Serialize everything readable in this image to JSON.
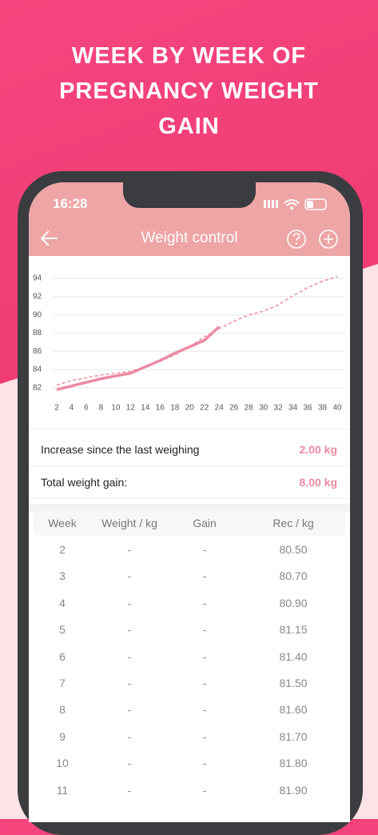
{
  "banner": {
    "title": "WEEK BY WEEK OF PREGNANCY WEIGHT GAIN"
  },
  "status_bar": {
    "time": "16:28"
  },
  "nav": {
    "title": "Weight control"
  },
  "chart_data": {
    "type": "line",
    "x": [
      2,
      4,
      6,
      8,
      10,
      12,
      14,
      16,
      18,
      20,
      22,
      24,
      26,
      28,
      30,
      32,
      34,
      36,
      38,
      40
    ],
    "xlim": [
      2,
      40
    ],
    "xticks": [
      2,
      4,
      6,
      8,
      10,
      12,
      14,
      16,
      18,
      20,
      22,
      24,
      26,
      28,
      30,
      32,
      34,
      36,
      38,
      40
    ],
    "ylim": [
      80.5,
      95.5
    ],
    "yticks": [
      82,
      84,
      86,
      88,
      90,
      92,
      94
    ],
    "grid": true,
    "series": [
      {
        "color": "#ec8aa3",
        "style": "solid",
        "values": [
          81.8,
          82.2,
          82.6,
          83.0,
          83.3,
          83.6,
          84.3,
          85.0,
          85.8,
          86.5,
          87.2,
          88.7,
          null,
          null,
          null,
          null,
          null,
          null,
          null,
          null
        ]
      },
      {
        "color": "#ec8aa3",
        "style": "dashed",
        "values": [
          82.3,
          82.8,
          83.1,
          83.4,
          83.6,
          83.8,
          84.3,
          84.9,
          85.6,
          86.5,
          87.6,
          88.5,
          89.3,
          90.0,
          90.4,
          91.1,
          92.1,
          93.0,
          93.7,
          94.2
        ]
      }
    ]
  },
  "summary": {
    "rows": [
      {
        "label": "Increase since the last weighing",
        "value": "2.00 kg"
      },
      {
        "label": "Total weight gain:",
        "value": "8.00 kg"
      }
    ]
  },
  "table": {
    "header": [
      "Week",
      "Weight / kg",
      "Gain",
      "Rec / kg"
    ],
    "rows": [
      [
        "2",
        "-",
        "-",
        "80.50"
      ],
      [
        "3",
        "-",
        "-",
        "80.70"
      ],
      [
        "4",
        "-",
        "-",
        "80.90"
      ],
      [
        "5",
        "-",
        "-",
        "81.15"
      ],
      [
        "6",
        "-",
        "-",
        "81.40"
      ],
      [
        "7",
        "-",
        "-",
        "81.50"
      ],
      [
        "8",
        "-",
        "-",
        "81.60"
      ],
      [
        "9",
        "-",
        "-",
        "81.70"
      ],
      [
        "10",
        "-",
        "-",
        "81.80"
      ],
      [
        "11",
        "-",
        "-",
        "81.90"
      ]
    ]
  }
}
